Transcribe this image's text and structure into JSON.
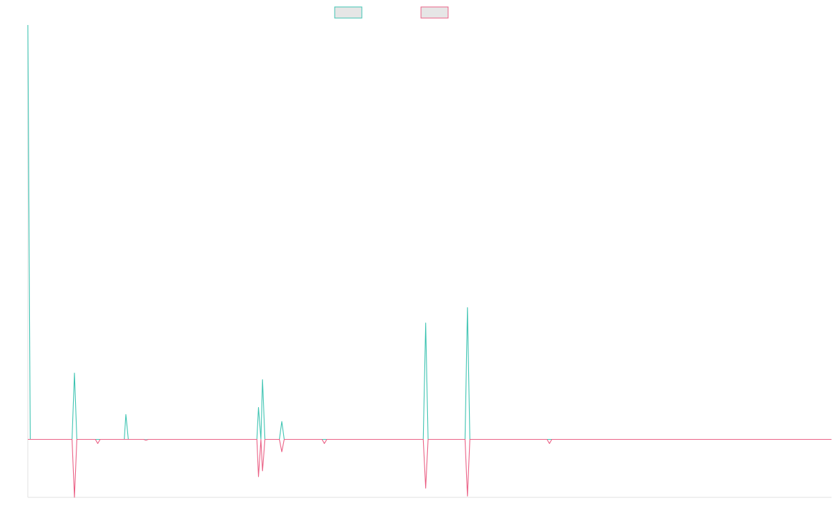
{
  "chart_data": {
    "type": "line",
    "title": "",
    "xlabel": "",
    "ylabel": "",
    "legend_position": "top-center",
    "grid": false,
    "xlim": [
      0,
      1000
    ],
    "ylim": [
      -0.14,
      1.0
    ],
    "baseline": 0,
    "series": [
      {
        "color": "#3cc3b1",
        "legend_fill": "#e6e6e6",
        "points": [
          [
            0,
            1.0
          ],
          [
            3,
            0.0
          ],
          [
            55,
            0.0
          ],
          [
            58,
            0.16
          ],
          [
            61,
            0.0
          ],
          [
            84,
            0.0
          ],
          [
            87,
            0.0
          ],
          [
            90,
            0.0
          ],
          [
            120,
            0.0
          ],
          [
            122,
            0.06
          ],
          [
            125,
            0.0
          ],
          [
            144,
            0.0
          ],
          [
            147,
            -0.001
          ],
          [
            150,
            0.0
          ],
          [
            285,
            0.0
          ],
          [
            287,
            0.077
          ],
          [
            290,
            0.0
          ],
          [
            292,
            0.144
          ],
          [
            295,
            0.0
          ],
          [
            313,
            0.0
          ],
          [
            316,
            0.043
          ],
          [
            319,
            0.0
          ],
          [
            366,
            0.0
          ],
          [
            369,
            0.0
          ],
          [
            372,
            0.0
          ],
          [
            492,
            0.0
          ],
          [
            495,
            0.281
          ],
          [
            498,
            0.0
          ],
          [
            544,
            0.0
          ],
          [
            547,
            0.318
          ],
          [
            550,
            0.0
          ],
          [
            646,
            0.0
          ],
          [
            649,
            0.0
          ],
          [
            652,
            0.0
          ],
          [
            1000,
            0.0
          ]
        ]
      },
      {
        "color": "#ea5f84",
        "legend_fill": "#e6e6e6",
        "points": [
          [
            0,
            0.0
          ],
          [
            3,
            0.0
          ],
          [
            55,
            0.0
          ],
          [
            58,
            -0.14
          ],
          [
            61,
            0.0
          ],
          [
            84,
            0.0
          ],
          [
            87,
            -0.01
          ],
          [
            90,
            0.0
          ],
          [
            120,
            0.0
          ],
          [
            122,
            0.0
          ],
          [
            125,
            0.0
          ],
          [
            144,
            0.0
          ],
          [
            147,
            -0.002
          ],
          [
            150,
            0.0
          ],
          [
            285,
            0.0
          ],
          [
            287,
            -0.09
          ],
          [
            290,
            0.0
          ],
          [
            292,
            -0.076
          ],
          [
            295,
            0.0
          ],
          [
            313,
            0.0
          ],
          [
            316,
            -0.03
          ],
          [
            319,
            0.0
          ],
          [
            366,
            0.0
          ],
          [
            369,
            -0.01
          ],
          [
            372,
            0.0
          ],
          [
            492,
            0.0
          ],
          [
            495,
            -0.118
          ],
          [
            498,
            0.0
          ],
          [
            544,
            0.0
          ],
          [
            547,
            -0.137
          ],
          [
            550,
            0.0
          ],
          [
            646,
            0.0
          ],
          [
            649,
            -0.01
          ],
          [
            652,
            0.0
          ],
          [
            1000,
            0.0
          ]
        ]
      }
    ]
  }
}
